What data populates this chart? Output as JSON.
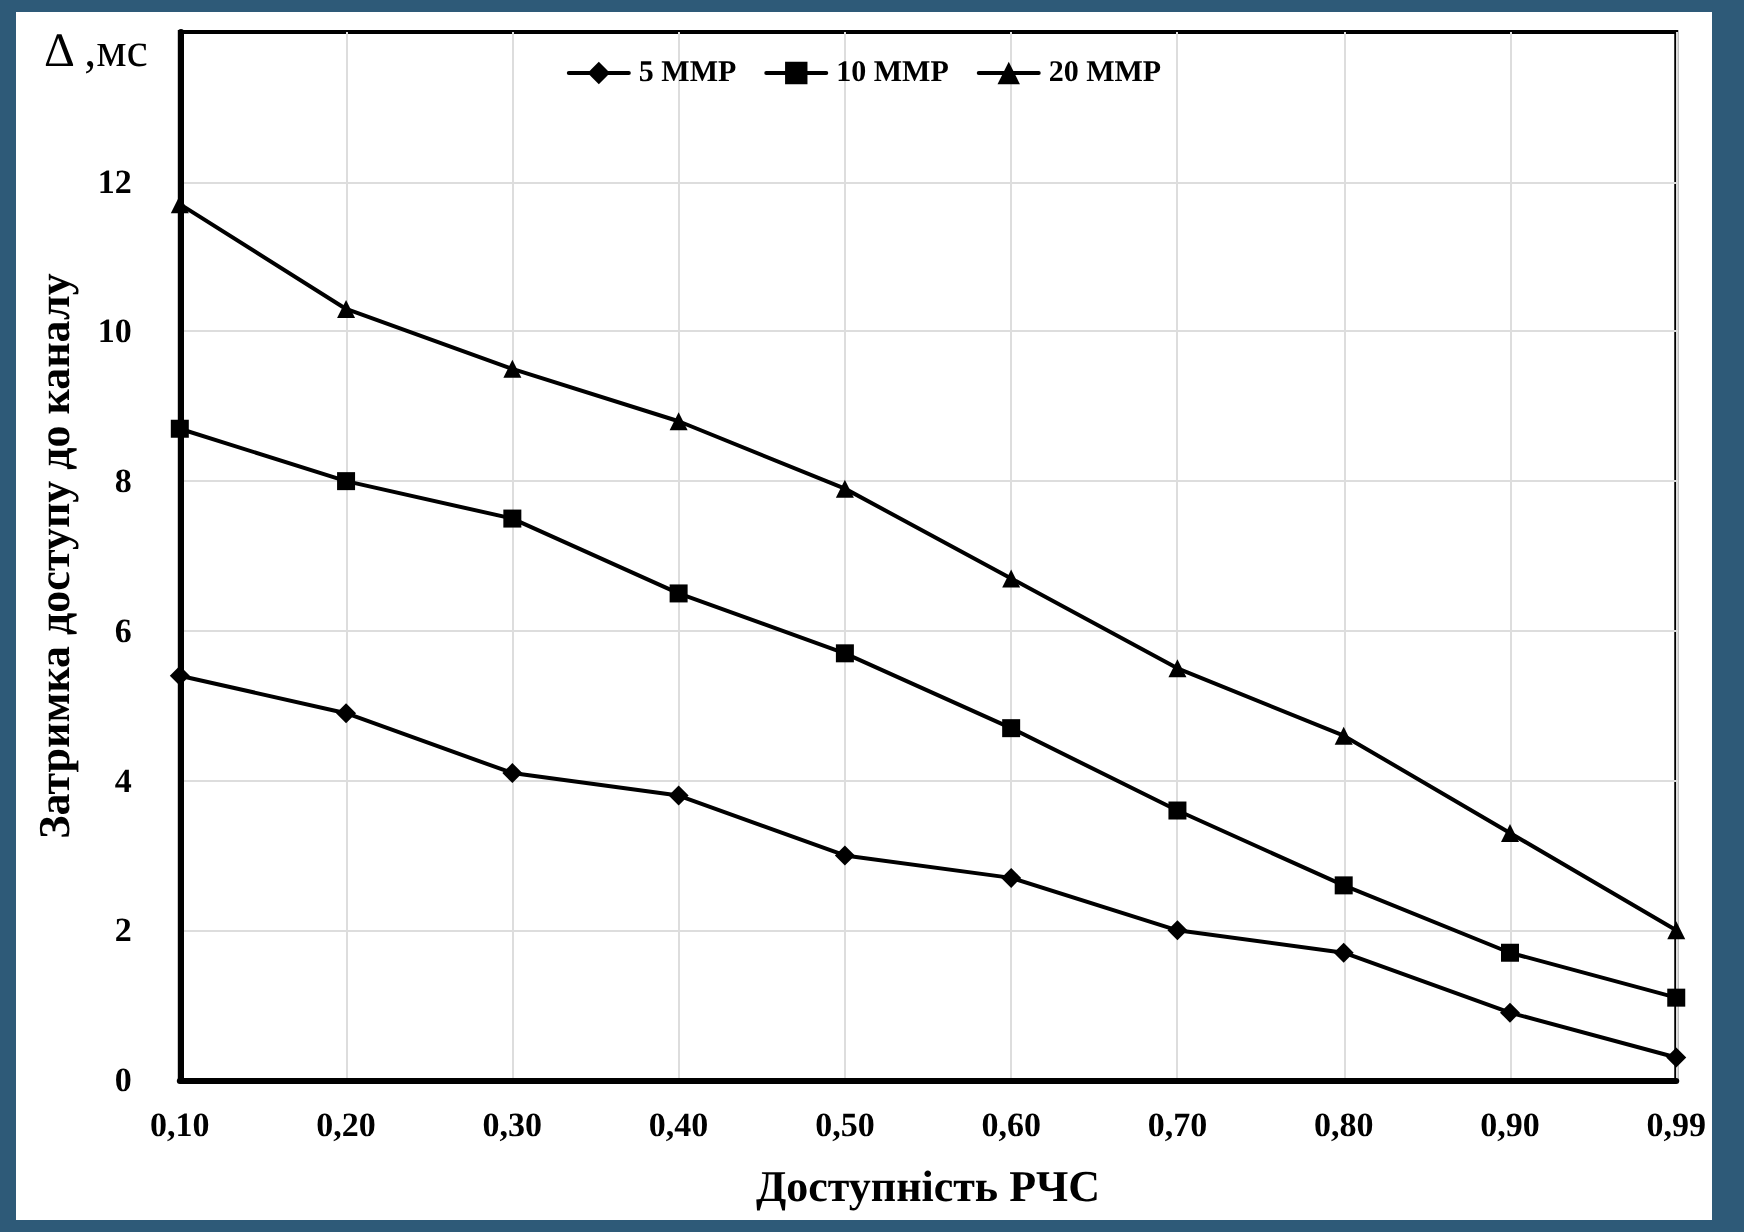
{
  "chart_data": {
    "type": "line",
    "xlabel": "Доступність РЧС",
    "ylabel": "Затримка доступу до каналу",
    "annotations": [
      "Δ ,мс"
    ],
    "categories": [
      "0,10",
      "0,20",
      "0,30",
      "0,40",
      "0,50",
      "0,60",
      "0,70",
      "0,80",
      "0,90",
      "0,99"
    ],
    "series": [
      {
        "name": "5 MMP",
        "color": "#000000",
        "marker": "diamond",
        "values": [
          5.4,
          4.9,
          4.1,
          3.8,
          3.0,
          2.7,
          2.0,
          1.7,
          0.9,
          0.3
        ]
      },
      {
        "name": "10 MMP",
        "color": "#000000",
        "marker": "square",
        "values": [
          8.7,
          8.0,
          7.5,
          6.5,
          5.7,
          4.7,
          3.6,
          2.6,
          1.7,
          1.1
        ]
      },
      {
        "name": "20 MMP",
        "color": "#000000",
        "marker": "triangle",
        "values": [
          11.7,
          10.3,
          9.5,
          8.8,
          7.9,
          6.7,
          5.5,
          4.6,
          3.3,
          2.0
        ]
      }
    ],
    "ylim": [
      0,
      14
    ],
    "yticks": [
      0,
      2,
      4,
      6,
      8,
      10,
      12
    ],
    "grid": true,
    "legend": "top",
    "line_style": "solid"
  }
}
